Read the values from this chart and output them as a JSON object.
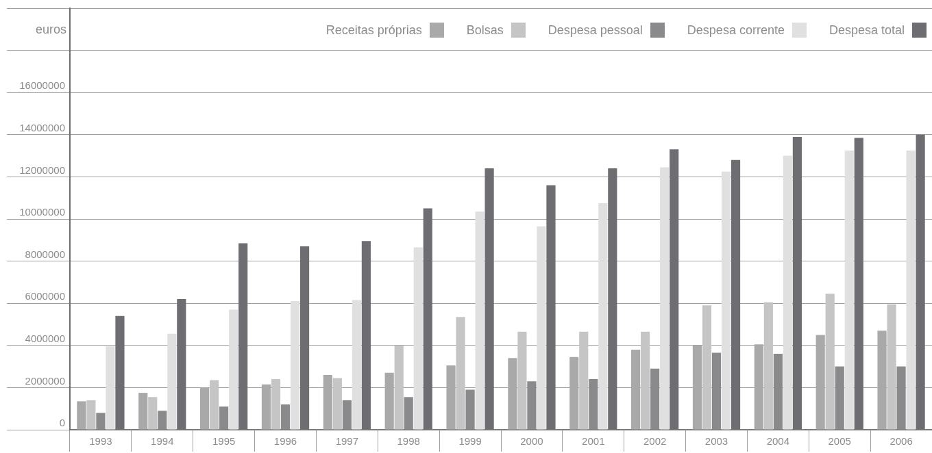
{
  "chart_data": {
    "type": "bar",
    "ylabel": "euros",
    "categories": [
      "1993",
      "1994",
      "1995",
      "1996",
      "1997",
      "1998",
      "1999",
      "2000",
      "2001",
      "2002",
      "2003",
      "2004",
      "2005",
      "2006"
    ],
    "series": [
      {
        "name": "Receitas próprias",
        "color": "#a9a9aa",
        "values": [
          1350000,
          1750000,
          2000000,
          2150000,
          2600000,
          2700000,
          3050000,
          3400000,
          3450000,
          3800000,
          4000000,
          4050000,
          4500000,
          4700000
        ]
      },
      {
        "name": "Bolsas",
        "color": "#c5c5c5",
        "values": [
          1400000,
          1550000,
          2350000,
          2400000,
          2450000,
          4000000,
          5350000,
          4650000,
          4650000,
          4650000,
          5900000,
          6050000,
          6450000,
          5950000
        ]
      },
      {
        "name": "Despesa pessoal",
        "color": "#8a8a8c",
        "values": [
          800000,
          900000,
          1100000,
          1200000,
          1400000,
          1550000,
          1900000,
          2300000,
          2400000,
          2900000,
          3650000,
          3600000,
          3000000,
          3000000
        ]
      },
      {
        "name": "Despesa corrente",
        "color": "#e0e0e0",
        "values": [
          3950000,
          4550000,
          5700000,
          6100000,
          6150000,
          8650000,
          10350000,
          9650000,
          10750000,
          12450000,
          12250000,
          13000000,
          13250000,
          13250000
        ]
      },
      {
        "name": "Despesa total",
        "color": "#6e6d72",
        "values": [
          5400000,
          6200000,
          8850000,
          8700000,
          8950000,
          10500000,
          12400000,
          11600000,
          12400000,
          13300000,
          12800000,
          13900000,
          13850000,
          14000000
        ]
      }
    ],
    "ylim": [
      0,
      20000000
    ],
    "yticks": [
      0,
      2000000,
      4000000,
      6000000,
      8000000,
      10000000,
      12000000,
      14000000,
      16000000,
      {
        "value": 18000000,
        "label": null
      },
      {
        "value": 20000000,
        "label": null
      }
    ],
    "grid": "y",
    "legend": "top right"
  }
}
